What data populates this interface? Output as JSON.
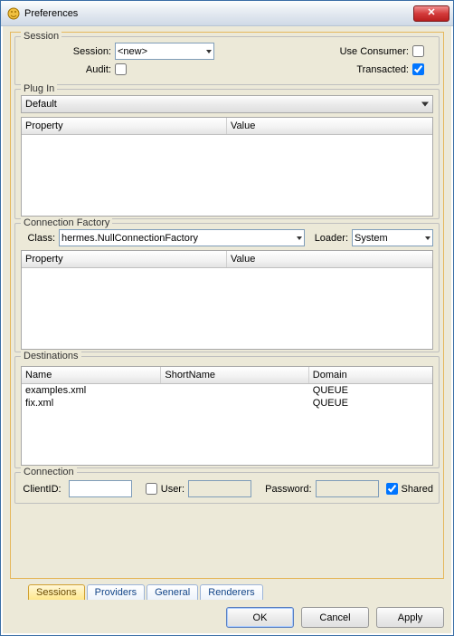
{
  "window": {
    "title": "Preferences",
    "close_glyph": "✕"
  },
  "session_group": {
    "legend": "Session",
    "session_label": "Session:",
    "session_value": "<new>",
    "audit_label": "Audit:",
    "audit_checked": false,
    "use_consumer_label": "Use Consumer:",
    "use_consumer_checked": false,
    "transacted_label": "Transacted:",
    "transacted_checked": true
  },
  "plugin_group": {
    "legend": "Plug In",
    "selector": "Default",
    "columns": {
      "property": "Property",
      "value": "Value"
    }
  },
  "cf_group": {
    "legend": "Connection Factory",
    "class_label": "Class:",
    "class_value": "hermes.NullConnectionFactory",
    "loader_label": "Loader:",
    "loader_value": "System",
    "columns": {
      "property": "Property",
      "value": "Value"
    }
  },
  "dest_group": {
    "legend": "Destinations",
    "columns": {
      "name": "Name",
      "shortname": "ShortName",
      "domain": "Domain"
    },
    "rows": [
      {
        "name": "examples.xml",
        "shortname": "",
        "domain": "QUEUE"
      },
      {
        "name": "fix.xml",
        "shortname": "",
        "domain": "QUEUE"
      }
    ]
  },
  "conn_group": {
    "legend": "Connection",
    "clientid_label": "ClientID:",
    "clientid_value": "",
    "user_label": "User:",
    "user_checked": false,
    "user_value": "",
    "password_label": "Password:",
    "password_value": "",
    "shared_label": "Shared",
    "shared_checked": true
  },
  "tabs": {
    "items": [
      "Sessions",
      "Providers",
      "General",
      "Renderers"
    ],
    "active": 0
  },
  "buttons": {
    "ok": "OK",
    "cancel": "Cancel",
    "apply": "Apply"
  },
  "style": {
    "background_color": "#ece9d8",
    "titlebar_gradient": [
      "#fdfefe",
      "#e8edf3",
      "#cfd9e6"
    ],
    "border_color": "#3a6ea5",
    "font_family": "Tahoma",
    "font_size_pt": 8,
    "group_border": "#bfbfbf",
    "table_header_gradient": [
      "#ffffff",
      "#f2f2f2",
      "#e3e3e3"
    ],
    "input_border": "#7f9db9",
    "close_button_gradient": [
      "#f08f8f",
      "#d43b3b",
      "#b91e1e"
    ],
    "tab_active_gradient": [
      "#fff8d8",
      "#ffe88c"
    ],
    "tab_inactive_gradient": [
      "#ffffff",
      "#edf3fb"
    ],
    "tab_border": "#9cb4d8",
    "button_gradient": [
      "#fdfdfd",
      "#ececec",
      "#e0e0e0"
    ],
    "default_button_border": "#5a7fbf",
    "inner_border_color": "#e5b75c"
  }
}
